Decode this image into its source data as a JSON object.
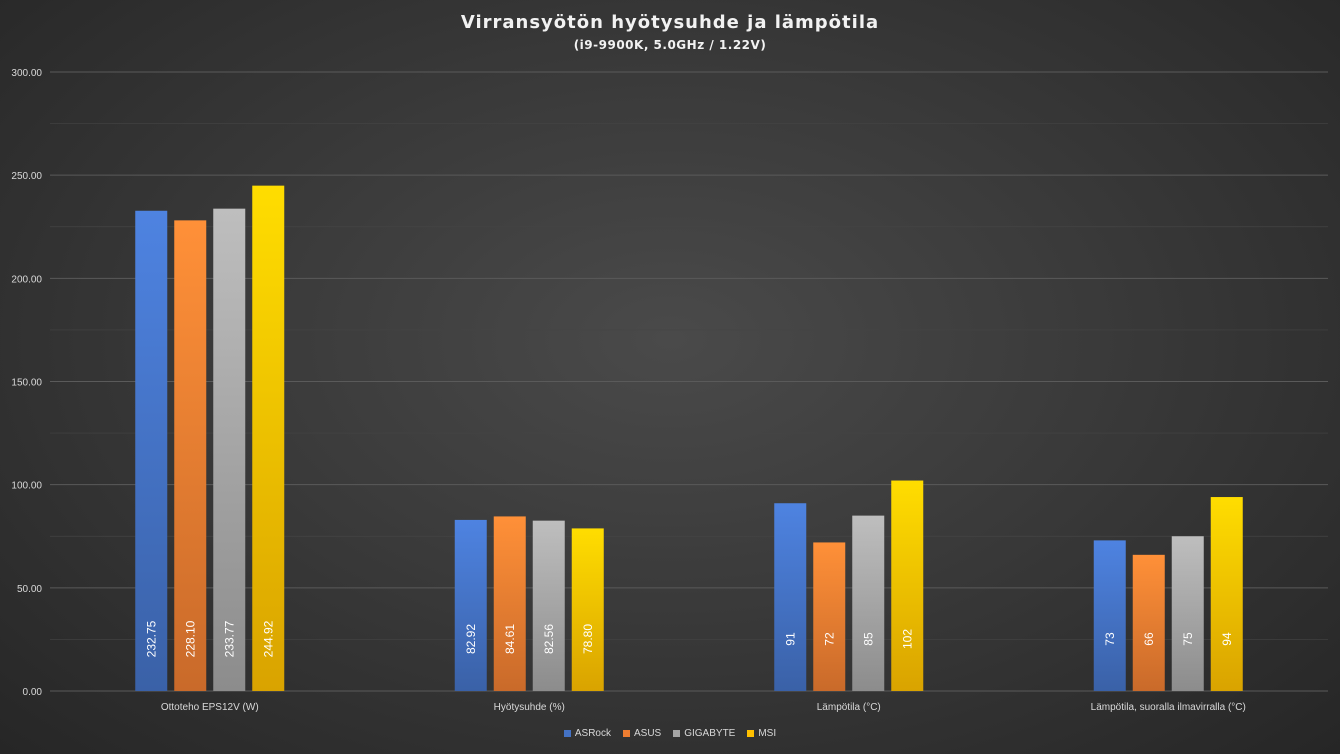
{
  "chart_data": {
    "type": "bar",
    "title": "Virransyötön  hyötysuhde  ja  lämpötila",
    "subtitle": "(i9-9900K,  5.0GHz  /  1.22V)",
    "categories": [
      "Ottoteho EPS12V (W)",
      "Hyötysuhde (%)",
      "Lämpötila (°C)",
      "Lämpötila, suoralla ilmavirralla (°C)"
    ],
    "series": [
      {
        "name": "ASRock",
        "color": "#4472c4",
        "values": [
          232.75,
          82.92,
          91,
          73
        ],
        "labels": [
          "232.75",
          "82.92",
          "91",
          "73"
        ]
      },
      {
        "name": "ASUS",
        "color": "#ed7d31",
        "values": [
          228.1,
          84.61,
          72,
          66
        ],
        "labels": [
          "228.10",
          "84.61",
          "72",
          "66"
        ]
      },
      {
        "name": "GIGABYTE",
        "color": "#a5a5a5",
        "values": [
          233.77,
          82.56,
          85,
          75
        ],
        "labels": [
          "233.77",
          "82.56",
          "85",
          "75"
        ]
      },
      {
        "name": "MSI",
        "color": "#ffc000",
        "values": [
          244.92,
          78.8,
          102,
          94
        ],
        "labels": [
          "244.92",
          "78.80",
          "102",
          "94"
        ]
      }
    ],
    "ylim": [
      0,
      300
    ],
    "yticks": [
      "0.00",
      "50.00",
      "100.00",
      "150.00",
      "200.00",
      "250.00",
      "300.00"
    ],
    "grid": true,
    "legend_position": "bottom"
  }
}
